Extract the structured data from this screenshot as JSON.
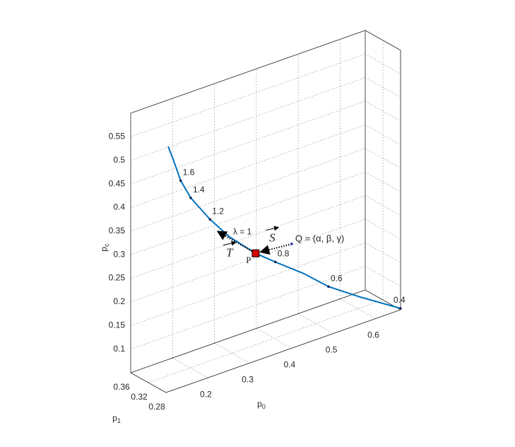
{
  "chart_data": {
    "type": "line3d",
    "xlabel": {
      "text": "p",
      "sub": "0"
    },
    "ylabel": {
      "text": "p",
      "sub": "1"
    },
    "zlabel": {
      "text": "p",
      "sub": "c"
    },
    "xlim": [
      0.1,
      0.66
    ],
    "ylim": [
      0.28,
      0.36
    ],
    "zlim": [
      0.05,
      0.6
    ],
    "xticks": [
      0.2,
      0.3,
      0.4,
      0.5,
      0.6
    ],
    "yticks": [
      0.28,
      0.32,
      0.36
    ],
    "zticks": [
      0.1,
      0.15,
      0.2,
      0.25,
      0.3,
      0.35,
      0.4,
      0.45,
      0.5,
      0.55
    ],
    "grid": true,
    "series": [
      {
        "color": "#0072bd",
        "x": [
          0.105,
          0.117,
          0.135,
          0.159,
          0.205,
          0.252,
          0.314,
          0.361,
          0.429,
          0.488,
          0.564,
          0.66
        ],
        "y": [
          0.28,
          0.28,
          0.28,
          0.28,
          0.28,
          0.28,
          0.28,
          0.28,
          0.28,
          0.28,
          0.28,
          0.28
        ],
        "z": [
          0.57,
          0.539,
          0.488,
          0.444,
          0.384,
          0.332,
          0.278,
          0.245,
          0.199,
          0.153,
          0.107,
          0.053
        ]
      }
    ],
    "markers": {
      "color": "#1a2a5a",
      "x": [
        0.135,
        0.159,
        0.205,
        0.361,
        0.488,
        0.66
      ],
      "y": [
        0.28,
        0.28,
        0.28,
        0.28,
        0.28,
        0.28
      ],
      "z": [
        0.488,
        0.444,
        0.384,
        0.245,
        0.153,
        0.053
      ],
      "labels": [
        "1.6",
        "1.4",
        "1.2",
        "0.8",
        "0.6",
        "0.4"
      ]
    },
    "points": [
      {
        "label": "P",
        "color": "#d40000",
        "x": 0.314,
        "y": 0.28,
        "z": 0.278
      },
      {
        "label": "Q = (α, β, γ)",
        "color": "#3030c0",
        "x": 0.4,
        "y": 0.28,
        "z": 0.271
      }
    ],
    "vectors": [
      {
        "label": "S",
        "x": [
          0.4,
          0.314
        ],
        "y": [
          0.28,
          0.28
        ],
        "z": [
          0.271,
          0.278
        ]
      },
      {
        "label": "T",
        "x": [
          0.314,
          0.223
        ],
        "y": [
          0.28,
          0.28
        ],
        "z": [
          0.278,
          0.353
        ]
      }
    ],
    "annotations": [
      {
        "text": "λ = 1"
      }
    ]
  }
}
